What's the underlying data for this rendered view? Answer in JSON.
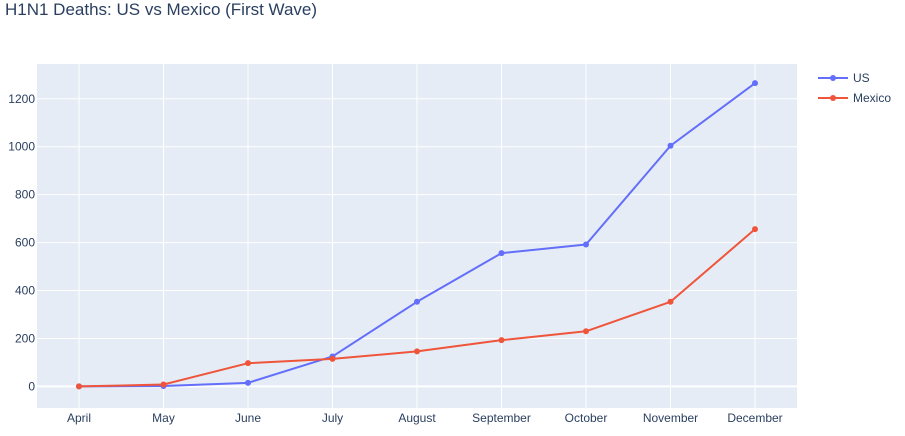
{
  "chart_data": {
    "type": "line",
    "title": "H1N1 Deaths: US vs Mexico (First Wave)",
    "xlabel": "",
    "ylabel": "",
    "categories": [
      "April",
      "May",
      "June",
      "July",
      "August",
      "September",
      "October",
      "November",
      "December"
    ],
    "ylim": [
      -90,
      1345
    ],
    "yticks": [
      0,
      200,
      400,
      600,
      800,
      1000,
      1200
    ],
    "grid": true,
    "legend_position": "top-right",
    "plot_background": "#e5ecf6",
    "series": [
      {
        "name": "US",
        "color": "#636efa",
        "values": [
          0,
          2,
          15,
          125,
          353,
          556,
          592,
          1004,
          1265
        ]
      },
      {
        "name": "Mexico",
        "color": "#ef553b",
        "values": [
          0,
          8,
          97,
          115,
          146,
          193,
          230,
          353,
          656
        ]
      }
    ]
  }
}
